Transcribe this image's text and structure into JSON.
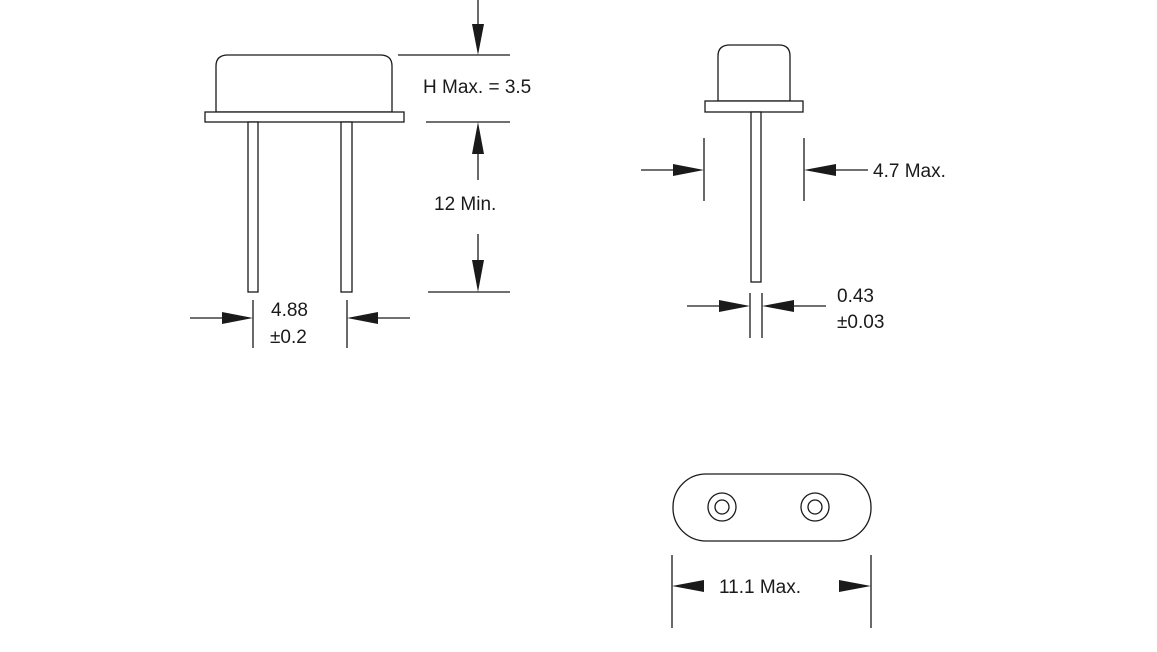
{
  "labels": {
    "height_max": "H Max.  = 3.5",
    "lead_length": "12 Min.",
    "lead_spacing_value": "4.88",
    "lead_spacing_tol": "±0.2",
    "body_width": "4.7 Max.",
    "lead_diameter_value": "0.43",
    "lead_diameter_tol": "±0.03",
    "body_length": "11.1 Max."
  },
  "colors": {
    "line": "#1a1a1a",
    "background": "#ffffff"
  }
}
